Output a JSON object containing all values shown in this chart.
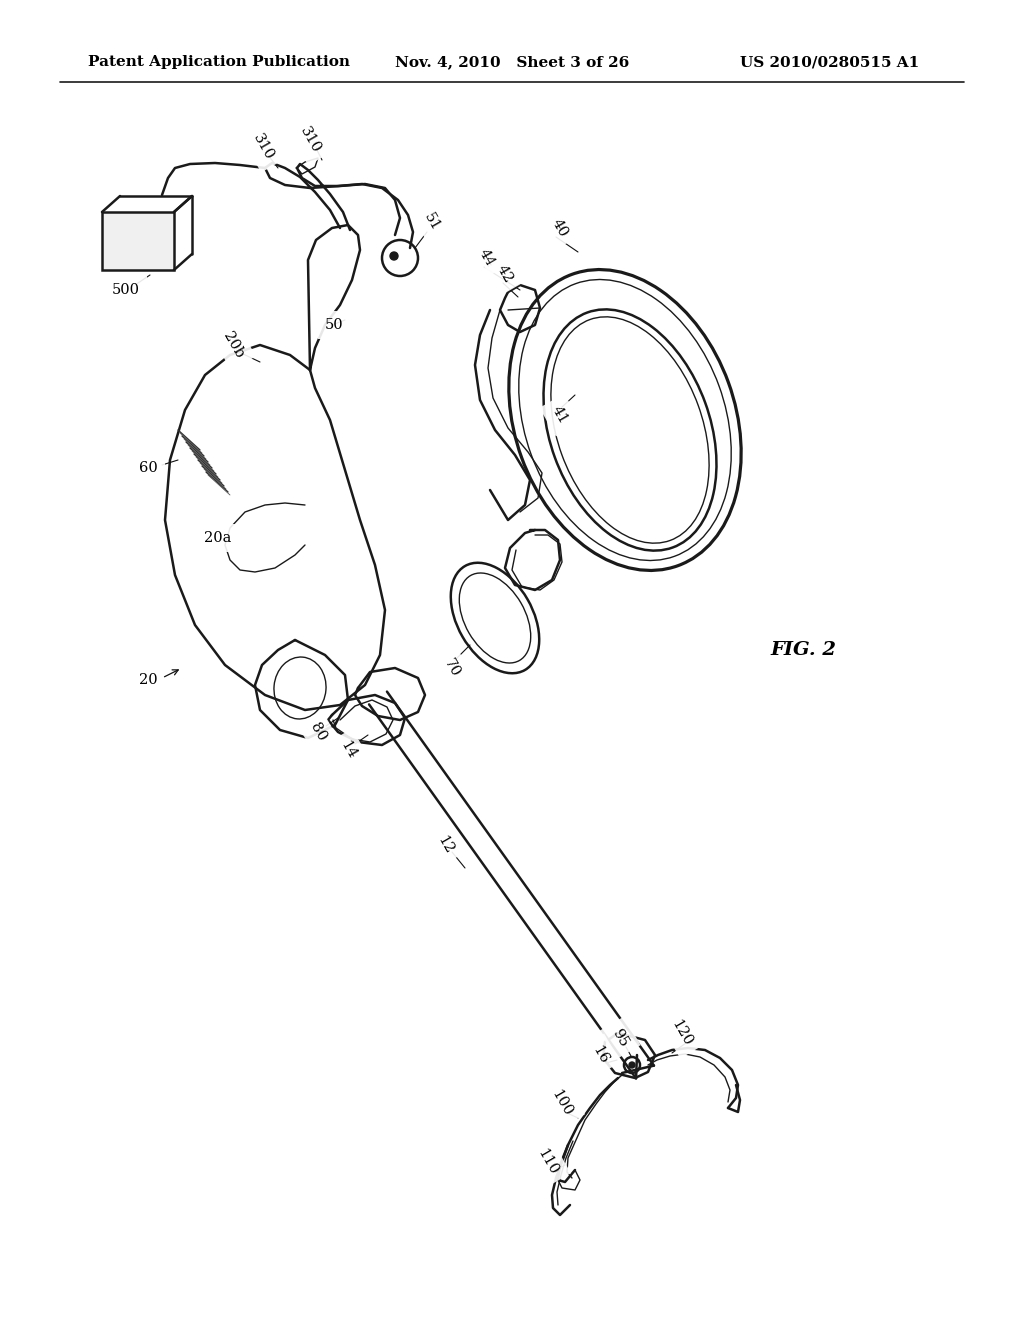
{
  "bg_color": "#ffffff",
  "header_left": "Patent Application Publication",
  "header_mid": "Nov. 4, 2010   Sheet 3 of 26",
  "header_right": "US 2010/0280515 A1",
  "fig_label": "FIG. 2",
  "title_fontsize": 11,
  "label_fontsize": 10.5,
  "line_color": "#1a1a1a",
  "lw_main": 1.8,
  "lw_thin": 1.0
}
